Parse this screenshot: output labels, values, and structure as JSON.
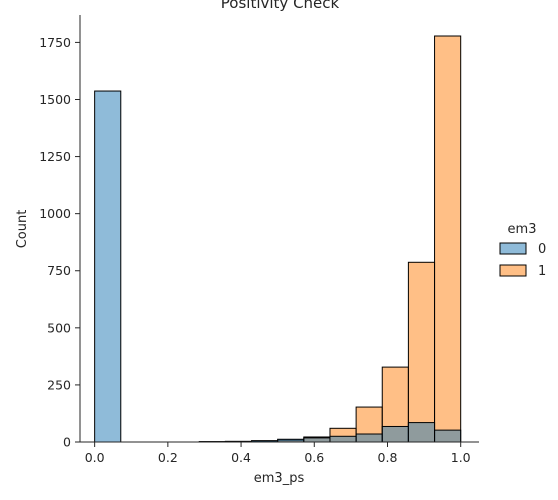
{
  "chart_data": {
    "type": "bar",
    "title": "Positivity Check",
    "xlabel": "em3_ps",
    "ylabel": "Count",
    "xlim": [
      -0.04,
      1.05
    ],
    "ylim": [
      0,
      1870
    ],
    "x_ticks": [
      0.0,
      0.2,
      0.4,
      0.6,
      0.8,
      1.0
    ],
    "x_tick_labels": [
      "0.0",
      "0.2",
      "0.4",
      "0.6",
      "0.8",
      "1.0"
    ],
    "y_ticks": [
      0,
      250,
      500,
      750,
      1000,
      1250,
      1500,
      1750
    ],
    "y_tick_labels": [
      "0",
      "250",
      "500",
      "750",
      "1000",
      "1250",
      "1500",
      "1750"
    ],
    "bin_edges": [
      0.0,
      0.0714,
      0.1429,
      0.2143,
      0.2857,
      0.3571,
      0.4286,
      0.5,
      0.5714,
      0.6429,
      0.7143,
      0.7857,
      0.8571,
      0.9286,
      1.0
    ],
    "legend": {
      "title": "em3",
      "placement": "right"
    },
    "series": [
      {
        "name": "0",
        "color": "#1f77b4",
        "values": [
          1537,
          0,
          0,
          0,
          2,
          3,
          6,
          12,
          18,
          25,
          35,
          68,
          85,
          52
        ]
      },
      {
        "name": "1",
        "color": "#ff7f0e",
        "values": [
          0,
          0,
          0,
          0,
          0,
          1,
          3,
          8,
          22,
          60,
          153,
          328,
          787,
          1778
        ]
      }
    ],
    "grid": false
  }
}
